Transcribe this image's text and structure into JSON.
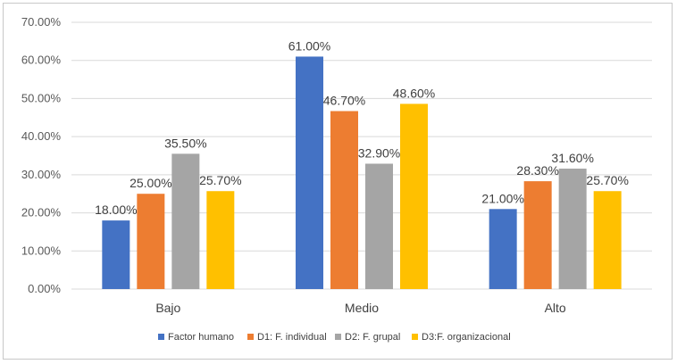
{
  "chart_data": {
    "type": "bar",
    "title": "",
    "xlabel": "",
    "ylabel": "",
    "categories": [
      "Bajo",
      "Medio",
      "Alto"
    ],
    "series": [
      {
        "name": "Factor humano",
        "color": "#4472C4",
        "values": [
          18.0,
          61.0,
          21.0
        ],
        "labels": [
          "18.00%",
          "61.00%",
          "21.00%"
        ]
      },
      {
        "name": "D1: F. individual",
        "color": "#ED7D31",
        "values": [
          25.0,
          46.7,
          28.3
        ],
        "labels": [
          "25.00%",
          "46.70%",
          "28.30%"
        ]
      },
      {
        "name": "D2: F. grupal",
        "color": "#A5A5A5",
        "values": [
          35.5,
          32.9,
          31.6
        ],
        "labels": [
          "35.50%",
          "32.90%",
          "31.60%"
        ]
      },
      {
        "name": "D3:F. organizacional",
        "color": "#FFC000",
        "values": [
          25.7,
          48.6,
          25.7
        ],
        "labels": [
          "25.70%",
          "48.60%",
          "25.70%"
        ]
      }
    ],
    "ylim": [
      0,
      70
    ],
    "yticks": [
      0,
      10,
      20,
      30,
      40,
      50,
      60,
      70
    ],
    "ytick_labels": [
      "0.00%",
      "10.00%",
      "20.00%",
      "30.00%",
      "40.00%",
      "50.00%",
      "60.00%",
      "70.00%"
    ],
    "grid": true,
    "legend_position": "bottom"
  }
}
